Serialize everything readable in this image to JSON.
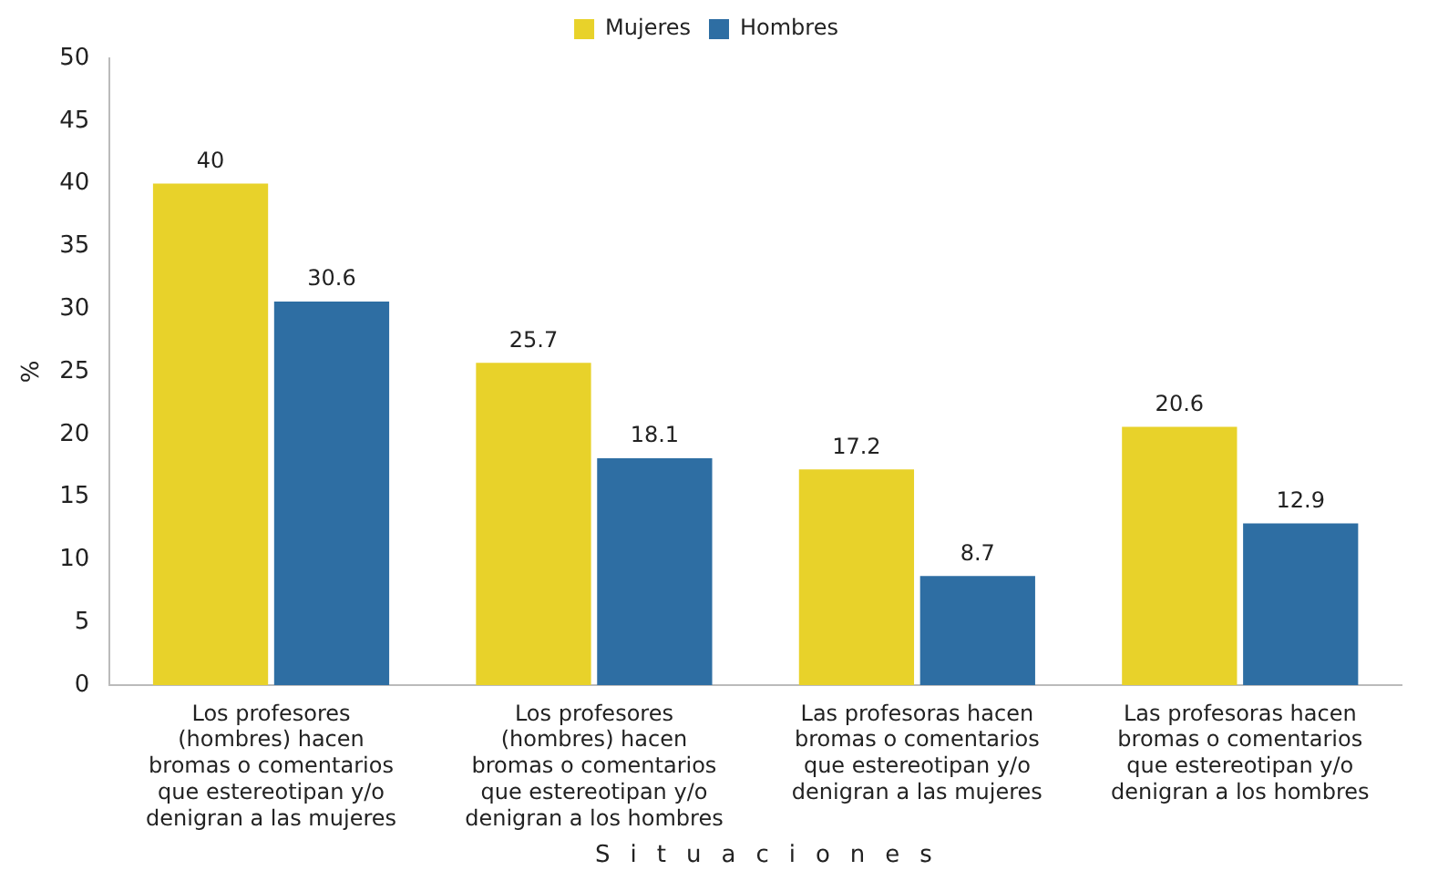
{
  "chart_data": {
    "type": "bar",
    "xlabel": "Situaciones",
    "ylabel": "%",
    "categories": [
      "Los profesores (hombres) hacen bromas o comentarios que estereotipan y/o denigran a las mujeres",
      "Los profesores (hombres) hacen bromas o comentarios que estereotipan y/o denigran a los hombres",
      "Las profesoras hacen bromas o comentarios que estereotipan y/o denigran a las mujeres",
      "Las profesoras hacen bromas o comentarios que estereotipan y/o denigran a los hombres"
    ],
    "series": [
      {
        "name": "Mujeres",
        "color": "#e8d22a",
        "values": [
          40,
          25.7,
          17.2,
          20.6
        ]
      },
      {
        "name": "Hombres",
        "color": "#2e6ea3",
        "values": [
          30.6,
          18.1,
          8.7,
          12.9
        ]
      }
    ],
    "ylim": [
      0,
      50
    ],
    "yticks": [
      0,
      5,
      10,
      15,
      20,
      25,
      30,
      35,
      40,
      45,
      50
    ],
    "grid": false,
    "legend": "top",
    "data_labels": true
  }
}
